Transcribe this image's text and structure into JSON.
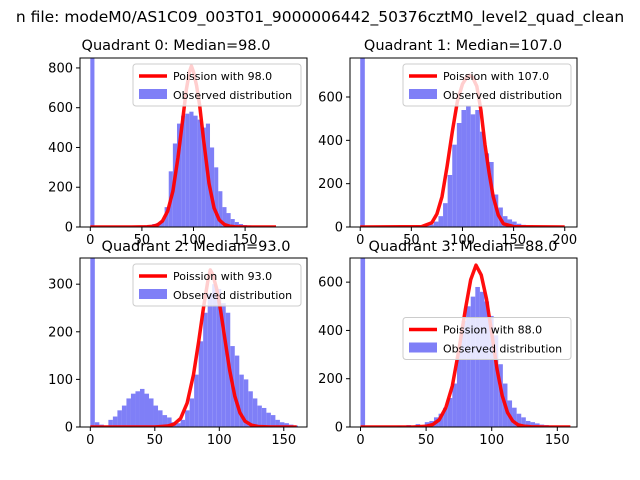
{
  "suptitle": "n file: modeM0/AS1C09_003T01_9000006442_50376cztM0_level2_quad_clean",
  "colors": {
    "hist": "#7f7ff7",
    "line": "#ff0000",
    "axis": "#000000",
    "text": "#000000"
  },
  "chart_data": [
    {
      "type": "bar",
      "title": "Quadrant 0: Median=98.0",
      "xlim": [
        -10,
        210
      ],
      "ylim": [
        0,
        850
      ],
      "xticks": [
        0,
        50,
        100,
        150
      ],
      "yticks": [
        0,
        200,
        400,
        600,
        800
      ],
      "bin_width": 4,
      "legend_position": "upper-right",
      "legend": [
        "Poission with 98.0",
        "Observed distribution"
      ],
      "hist": {
        "x": [
          0,
          4,
          8,
          12,
          16,
          20,
          24,
          28,
          32,
          36,
          40,
          44,
          48,
          52,
          56,
          60,
          64,
          68,
          72,
          76,
          80,
          84,
          88,
          92,
          96,
          100,
          104,
          108,
          112,
          116,
          120,
          124,
          128,
          132,
          136,
          140,
          144,
          148,
          152,
          156,
          160,
          164,
          168,
          172,
          176
        ],
        "values": [
          850,
          0,
          0,
          0,
          0,
          0,
          0,
          0,
          2,
          2,
          3,
          4,
          6,
          8,
          10,
          15,
          20,
          30,
          100,
          280,
          420,
          520,
          560,
          570,
          580,
          560,
          540,
          500,
          520,
          400,
          300,
          180,
          100,
          70,
          40,
          25,
          15,
          10,
          8,
          5,
          4,
          3,
          2,
          2,
          1
        ]
      },
      "poisson": {
        "x": [
          0,
          40,
          55,
          60,
          65,
          70,
          75,
          80,
          85,
          90,
          93,
          96,
          98,
          100,
          103,
          106,
          110,
          115,
          120,
          125,
          130,
          135,
          140,
          150,
          180
        ],
        "values": [
          0,
          0,
          1,
          3,
          10,
          30,
          80,
          180,
          350,
          560,
          690,
          780,
          810,
          780,
          710,
          610,
          430,
          220,
          95,
          35,
          12,
          4,
          1,
          0,
          0
        ]
      }
    },
    {
      "type": "bar",
      "title": "Quadrant 1: Median=107.0",
      "xlim": [
        -10,
        212
      ],
      "ylim": [
        0,
        780
      ],
      "xticks": [
        0,
        50,
        100,
        150,
        200
      ],
      "yticks": [
        0,
        200,
        400,
        600
      ],
      "bin_width": 4.5,
      "legend_position": "upper-right",
      "legend": [
        "Poission with 107.0",
        "Observed distribution"
      ],
      "hist": {
        "x": [
          0,
          4.5,
          54,
          63,
          67.5,
          72,
          76.5,
          81,
          85.5,
          90,
          94.5,
          99,
          103.5,
          108,
          112.5,
          117,
          121.5,
          126,
          130.5,
          135,
          139.5,
          144,
          148.5,
          153,
          157.5,
          162
        ],
        "values": [
          780,
          0,
          5,
          8,
          12,
          25,
          50,
          110,
          240,
          380,
          480,
          540,
          560,
          520,
          540,
          440,
          340,
          300,
          150,
          90,
          50,
          35,
          25,
          15,
          10,
          5
        ]
      },
      "poisson": {
        "x": [
          0,
          60,
          70,
          75,
          80,
          85,
          90,
          95,
          100,
          104,
          107,
          110,
          114,
          118,
          122,
          126,
          130,
          135,
          140,
          150,
          200
        ],
        "values": [
          0,
          2,
          20,
          60,
          140,
          280,
          440,
          580,
          660,
          690,
          700,
          690,
          650,
          540,
          380,
          250,
          140,
          55,
          15,
          2,
          0
        ]
      }
    },
    {
      "type": "bar",
      "title": "Quadrant 2: Median=93.0",
      "xlim": [
        -8,
        168
      ],
      "ylim": [
        0,
        355
      ],
      "xticks": [
        0,
        50,
        100,
        150
      ],
      "yticks": [
        0,
        100,
        200,
        300
      ],
      "bin_width": 3.5,
      "legend_position": "upper-right",
      "legend": [
        "Poission with 93.0",
        "Observed distribution"
      ],
      "hist": {
        "x": [
          0,
          3.5,
          7,
          10.5,
          14,
          17.5,
          21,
          24.5,
          28,
          31.5,
          35,
          38.5,
          42,
          45.5,
          49,
          52.5,
          56,
          59.5,
          63,
          66.5,
          70,
          73.5,
          77,
          80.5,
          84,
          87.5,
          91,
          94.5,
          98,
          101.5,
          105,
          108.5,
          112,
          115.5,
          119,
          122.5,
          126,
          129.5,
          133,
          136.5,
          140,
          143.5,
          147,
          150.5,
          154,
          157.5
        ],
        "values": [
          355,
          10,
          5,
          3,
          15,
          22,
          35,
          45,
          60,
          70,
          75,
          80,
          70,
          60,
          45,
          35,
          25,
          20,
          10,
          8,
          15,
          35,
          60,
          110,
          180,
          240,
          280,
          300,
          290,
          260,
          240,
          170,
          150,
          110,
          100,
          75,
          60,
          45,
          40,
          30,
          25,
          15,
          10,
          8,
          5,
          3
        ]
      },
      "poisson": {
        "x": [
          0,
          50,
          60,
          65,
          70,
          75,
          80,
          84,
          88,
          91,
          93,
          95,
          98,
          101,
          104,
          108,
          112,
          116,
          120,
          125,
          130,
          140,
          160
        ],
        "values": [
          0,
          0,
          2,
          6,
          18,
          50,
          110,
          180,
          255,
          305,
          330,
          320,
          290,
          245,
          190,
          120,
          65,
          30,
          12,
          4,
          1,
          0,
          0
        ]
      }
    },
    {
      "type": "bar",
      "title": "Quadrant 3: Median=88.0",
      "xlim": [
        -8,
        165
      ],
      "ylim": [
        0,
        700
      ],
      "xticks": [
        0,
        50,
        100,
        150
      ],
      "yticks": [
        0,
        200,
        400,
        600
      ],
      "bin_width": 3.5,
      "legend_position": "center-right",
      "legend": [
        "Poission with 88.0",
        "Observed distribution"
      ],
      "hist": {
        "x": [
          0,
          3.5,
          28,
          35,
          42,
          49,
          52.5,
          56,
          59.5,
          63,
          66.5,
          70,
          73.5,
          77,
          80.5,
          84,
          87.5,
          91,
          94.5,
          98,
          101.5,
          105,
          108.5,
          112,
          115.5,
          119,
          122.5,
          126,
          129.5,
          133,
          136.5,
          140,
          143.5,
          147,
          150.5
        ],
        "values": [
          700,
          0,
          5,
          8,
          12,
          20,
          25,
          40,
          55,
          80,
          120,
          180,
          320,
          440,
          500,
          540,
          580,
          560,
          520,
          460,
          380,
          260,
          180,
          110,
          80,
          55,
          40,
          25,
          20,
          15,
          10,
          8,
          5,
          3,
          2
        ]
      },
      "poisson": {
        "x": [
          0,
          40,
          50,
          55,
          60,
          65,
          70,
          75,
          80,
          84,
          88,
          92,
          96,
          100,
          104,
          108,
          112,
          116,
          120,
          125,
          130,
          140,
          160
        ],
        "values": [
          0,
          0,
          3,
          10,
          30,
          80,
          170,
          320,
          490,
          610,
          670,
          630,
          530,
          390,
          240,
          130,
          60,
          25,
          9,
          3,
          1,
          0,
          0
        ]
      }
    }
  ]
}
